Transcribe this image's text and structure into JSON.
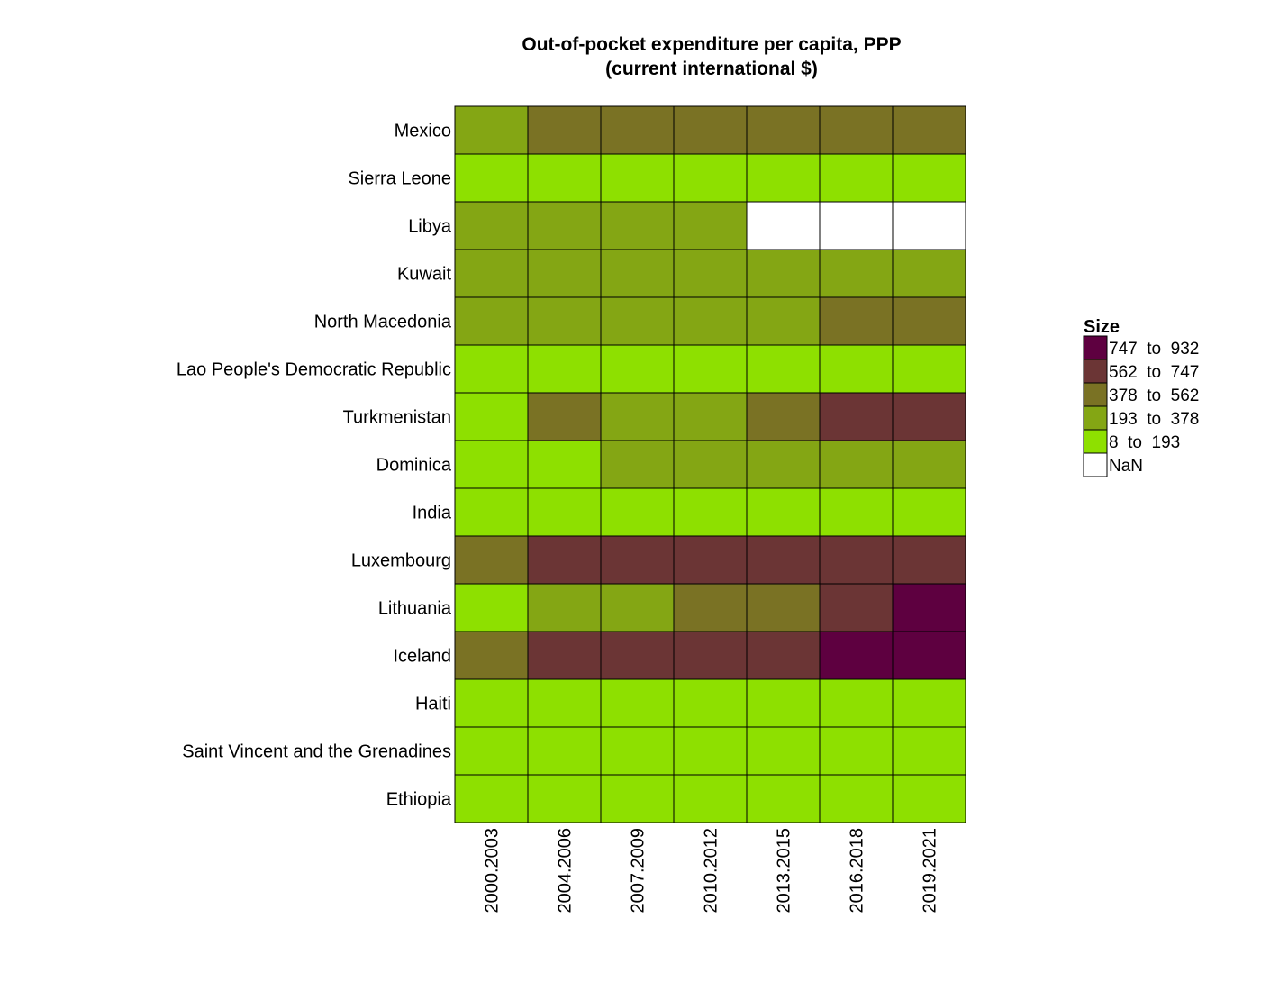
{
  "chart_data": {
    "type": "heatmap",
    "title_line1": "Out-of-pocket expenditure per capita, PPP",
    "title_line2": "(current international $)",
    "xlabel": "",
    "ylabel": "",
    "x_categories": [
      "2000.2003",
      "2004.2006",
      "2007.2009",
      "2010.2012",
      "2013.2015",
      "2016.2018",
      "2019.2021"
    ],
    "y_categories": [
      "Mexico",
      "Sierra Leone",
      "Libya",
      "Kuwait",
      "North Macedonia",
      "Lao People's Democratic Republic",
      "Turkmenistan",
      "Dominica",
      "India",
      "Luxembourg",
      "Lithuania",
      "Iceland",
      "Haiti",
      "Saint Vincent and the Grenadines",
      "Ethiopia"
    ],
    "bin_matrix_note": "each row lists the legend bin index (0 = 8 to 193 ... 4 = 747 to 932, null = NaN) for each period",
    "values_bin": [
      [
        1,
        2,
        2,
        2,
        2,
        2,
        2
      ],
      [
        0,
        0,
        0,
        0,
        0,
        0,
        0
      ],
      [
        1,
        1,
        1,
        1,
        null,
        null,
        null
      ],
      [
        1,
        1,
        1,
        1,
        1,
        1,
        1
      ],
      [
        1,
        1,
        1,
        1,
        1,
        2,
        2
      ],
      [
        0,
        0,
        0,
        0,
        0,
        0,
        0
      ],
      [
        0,
        2,
        1,
        1,
        2,
        3,
        3
      ],
      [
        0,
        0,
        1,
        1,
        1,
        1,
        1
      ],
      [
        0,
        0,
        0,
        0,
        0,
        0,
        0
      ],
      [
        2,
        3,
        3,
        3,
        3,
        3,
        3
      ],
      [
        0,
        1,
        1,
        2,
        2,
        3,
        4
      ],
      [
        2,
        3,
        3,
        3,
        3,
        4,
        4
      ],
      [
        0,
        0,
        0,
        0,
        0,
        0,
        0
      ],
      [
        0,
        0,
        0,
        0,
        0,
        0,
        0
      ],
      [
        0,
        0,
        0,
        0,
        0,
        0,
        0
      ]
    ],
    "legend": {
      "title": "Size",
      "position": "right",
      "entries": [
        {
          "label": "747  to  932",
          "color": "#5e0040",
          "bin": 4
        },
        {
          "label": "562  to  747",
          "color": "#6b3535",
          "bin": 3
        },
        {
          "label": "378  to  562",
          "color": "#7a7224",
          "bin": 2
        },
        {
          "label": "193  to  378",
          "color": "#84a614",
          "bin": 1
        },
        {
          "label": "8  to  193",
          "color": "#8ee000",
          "bin": 0
        },
        {
          "label": "NaN",
          "color": "#ffffff",
          "bin": null
        }
      ]
    },
    "grid": false,
    "cell_border_color": "#000000"
  }
}
